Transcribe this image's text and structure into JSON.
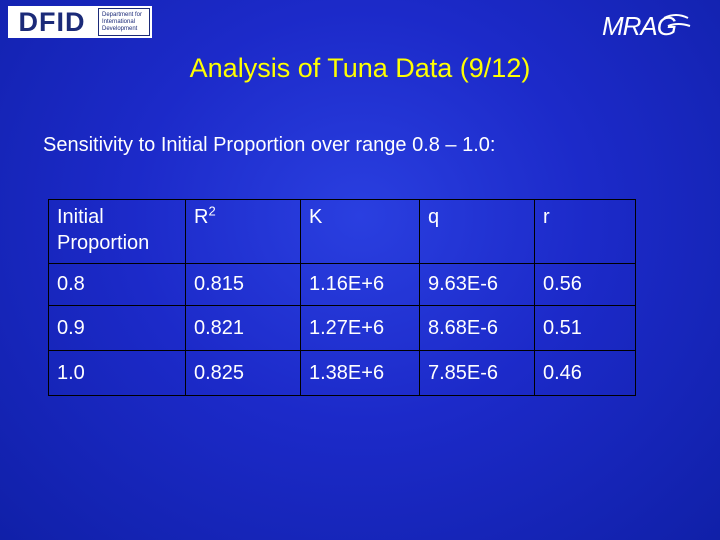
{
  "logos": {
    "dfid_mark": "DFID",
    "dfid_lines": [
      "Department for",
      "International",
      "Development"
    ],
    "mrag": "MRAG"
  },
  "slide": {
    "title": "Analysis of Tuna Data (9/12)",
    "subtitle": "Sensitivity to Initial Proportion over range 0.8 – 1.0:"
  },
  "table": {
    "headers": {
      "initial_proportion": "Initial Proportion",
      "r2_base": "R",
      "r2_sup": "2",
      "k": "K",
      "q": "q",
      "r": "r"
    },
    "rows": [
      {
        "initial_proportion": "0.8",
        "r2": "0.815",
        "k": "1.16E+6",
        "q": "9.63E-6",
        "r": "0.56"
      },
      {
        "initial_proportion": "0.9",
        "r2": "0.821",
        "k": "1.27E+6",
        "q": "8.68E-6",
        "r": "0.51"
      },
      {
        "initial_proportion": "1.0",
        "r2": "0.825",
        "k": "1.38E+6",
        "q": "7.85E-6",
        "r": "0.46"
      }
    ]
  },
  "colors": {
    "background": "#1c2ac9",
    "title": "#ffff00",
    "text": "#ffffff",
    "table_border": "#000000"
  }
}
